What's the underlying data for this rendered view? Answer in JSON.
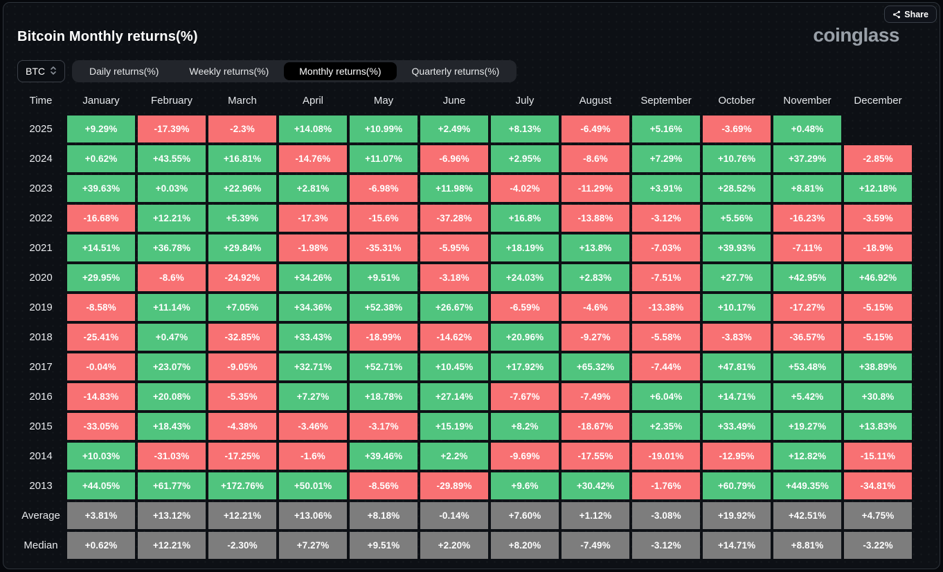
{
  "header": {
    "title": "Bitcoin Monthly returns(%)",
    "logo": "coinglass",
    "share_label": "Share"
  },
  "controls": {
    "coin_selector": {
      "value": "BTC"
    },
    "tabs": [
      {
        "label": "Daily returns(%)",
        "active": false
      },
      {
        "label": "Weekly returns(%)",
        "active": false
      },
      {
        "label": "Monthly returns(%)",
        "active": true
      },
      {
        "label": "Quarterly returns(%)",
        "active": false
      }
    ]
  },
  "colors": {
    "positive": "#50c47e",
    "negative": "#f87173",
    "neutral": "#7d7d7d"
  },
  "chart_data": {
    "type": "heatmap",
    "title": "Bitcoin Monthly returns(%)",
    "unit": "%",
    "corner_label": "Time",
    "columns": [
      "January",
      "February",
      "March",
      "April",
      "May",
      "June",
      "July",
      "August",
      "September",
      "October",
      "November",
      "December"
    ],
    "rows": [
      {
        "label": "2025",
        "kind": "year",
        "values": [
          "+9.29%",
          "-17.39%",
          "-2.3%",
          "+14.08%",
          "+10.99%",
          "+2.49%",
          "+8.13%",
          "-6.49%",
          "+5.16%",
          "-3.69%",
          "+0.48%",
          ""
        ]
      },
      {
        "label": "2024",
        "kind": "year",
        "values": [
          "+0.62%",
          "+43.55%",
          "+16.81%",
          "-14.76%",
          "+11.07%",
          "-6.96%",
          "+2.95%",
          "-8.6%",
          "+7.29%",
          "+10.76%",
          "+37.29%",
          "-2.85%"
        ]
      },
      {
        "label": "2023",
        "kind": "year",
        "values": [
          "+39.63%",
          "+0.03%",
          "+22.96%",
          "+2.81%",
          "-6.98%",
          "+11.98%",
          "-4.02%",
          "-11.29%",
          "+3.91%",
          "+28.52%",
          "+8.81%",
          "+12.18%"
        ]
      },
      {
        "label": "2022",
        "kind": "year",
        "values": [
          "-16.68%",
          "+12.21%",
          "+5.39%",
          "-17.3%",
          "-15.6%",
          "-37.28%",
          "+16.8%",
          "-13.88%",
          "-3.12%",
          "+5.56%",
          "-16.23%",
          "-3.59%"
        ]
      },
      {
        "label": "2021",
        "kind": "year",
        "values": [
          "+14.51%",
          "+36.78%",
          "+29.84%",
          "-1.98%",
          "-35.31%",
          "-5.95%",
          "+18.19%",
          "+13.8%",
          "-7.03%",
          "+39.93%",
          "-7.11%",
          "-18.9%"
        ]
      },
      {
        "label": "2020",
        "kind": "year",
        "values": [
          "+29.95%",
          "-8.6%",
          "-24.92%",
          "+34.26%",
          "+9.51%",
          "-3.18%",
          "+24.03%",
          "+2.83%",
          "-7.51%",
          "+27.7%",
          "+42.95%",
          "+46.92%"
        ]
      },
      {
        "label": "2019",
        "kind": "year",
        "values": [
          "-8.58%",
          "+11.14%",
          "+7.05%",
          "+34.36%",
          "+52.38%",
          "+26.67%",
          "-6.59%",
          "-4.6%",
          "-13.38%",
          "+10.17%",
          "-17.27%",
          "-5.15%"
        ]
      },
      {
        "label": "2018",
        "kind": "year",
        "values": [
          "-25.41%",
          "+0.47%",
          "-32.85%",
          "+33.43%",
          "-18.99%",
          "-14.62%",
          "+20.96%",
          "-9.27%",
          "-5.58%",
          "-3.83%",
          "-36.57%",
          "-5.15%"
        ]
      },
      {
        "label": "2017",
        "kind": "year",
        "values": [
          "-0.04%",
          "+23.07%",
          "-9.05%",
          "+32.71%",
          "+52.71%",
          "+10.45%",
          "+17.92%",
          "+65.32%",
          "-7.44%",
          "+47.81%",
          "+53.48%",
          "+38.89%"
        ]
      },
      {
        "label": "2016",
        "kind": "year",
        "values": [
          "-14.83%",
          "+20.08%",
          "-5.35%",
          "+7.27%",
          "+18.78%",
          "+27.14%",
          "-7.67%",
          "-7.49%",
          "+6.04%",
          "+14.71%",
          "+5.42%",
          "+30.8%"
        ]
      },
      {
        "label": "2015",
        "kind": "year",
        "values": [
          "-33.05%",
          "+18.43%",
          "-4.38%",
          "-3.46%",
          "-3.17%",
          "+15.19%",
          "+8.2%",
          "-18.67%",
          "+2.35%",
          "+33.49%",
          "+19.27%",
          "+13.83%"
        ]
      },
      {
        "label": "2014",
        "kind": "year",
        "values": [
          "+10.03%",
          "-31.03%",
          "-17.25%",
          "-1.6%",
          "+39.46%",
          "+2.2%",
          "-9.69%",
          "-17.55%",
          "-19.01%",
          "-12.95%",
          "+12.82%",
          "-15.11%"
        ]
      },
      {
        "label": "2013",
        "kind": "year",
        "values": [
          "+44.05%",
          "+61.77%",
          "+172.76%",
          "+50.01%",
          "-8.56%",
          "-29.89%",
          "+9.6%",
          "+30.42%",
          "-1.76%",
          "+60.79%",
          "+449.35%",
          "-34.81%"
        ]
      },
      {
        "label": "Average",
        "kind": "stat",
        "values": [
          "+3.81%",
          "+13.12%",
          "+12.21%",
          "+13.06%",
          "+8.18%",
          "-0.14%",
          "+7.60%",
          "+1.12%",
          "-3.08%",
          "+19.92%",
          "+42.51%",
          "+4.75%"
        ]
      },
      {
        "label": "Median",
        "kind": "stat",
        "values": [
          "+0.62%",
          "+12.21%",
          "-2.30%",
          "+7.27%",
          "+9.51%",
          "+2.20%",
          "+8.20%",
          "-7.49%",
          "-3.12%",
          "+14.71%",
          "+8.81%",
          "-3.22%"
        ]
      }
    ]
  }
}
